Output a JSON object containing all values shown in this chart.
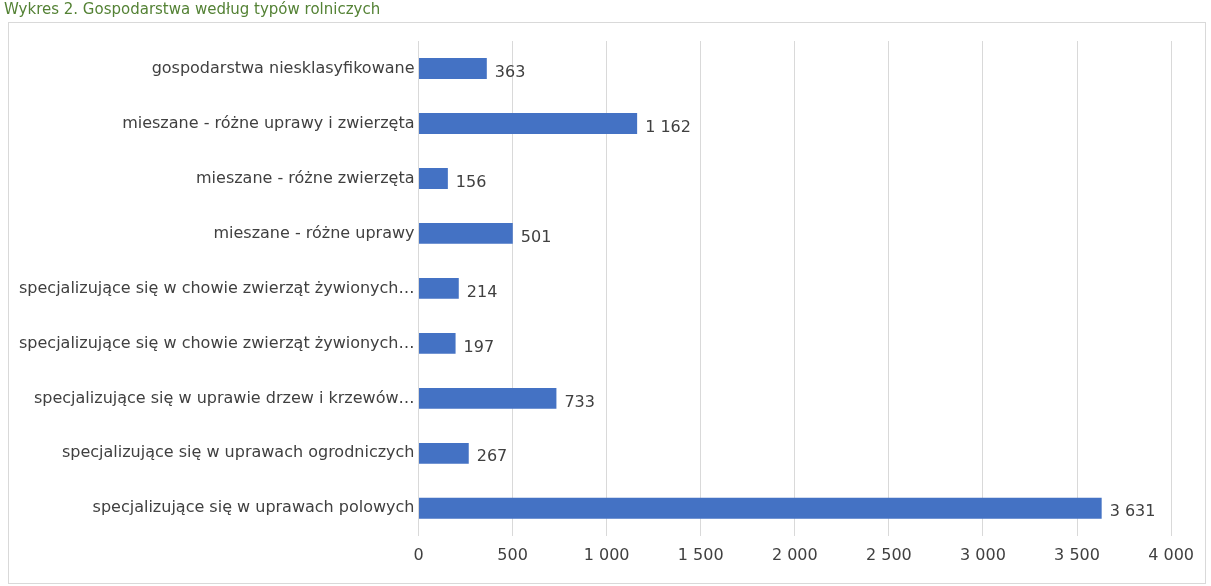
{
  "chart_data": {
    "type": "bar",
    "orientation": "horizontal",
    "title": "Wykres 2. Gospodarstwa według typów rolniczych",
    "categories": [
      "gospodarstwa niesklasyfikowane",
      "mieszane - różne uprawy i zwierzęta",
      "mieszane - różne zwierzęta",
      "mieszane - różne uprawy",
      "specjalizujące się w chowie zwierząt żywionych…",
      "specjalizujące się w chowie zwierząt żywionych…",
      "specjalizujące się w uprawie drzew i krzewów…",
      "specjalizujące się w uprawach ogrodniczych",
      "specjalizujące się w uprawach polowych"
    ],
    "values": [
      363,
      1162,
      156,
      501,
      214,
      197,
      733,
      267,
      3631
    ],
    "value_labels": [
      "363",
      "1 162",
      "156",
      "501",
      "214",
      "197",
      "733",
      "267",
      "3 631"
    ],
    "color": "#4472c4",
    "xlim": [
      0,
      4000
    ],
    "xticks": [
      0,
      {
        "value": 500,
        "label": "500"
      },
      {
        "value": 1000,
        "label": "1 000"
      },
      {
        "value": 1500,
        "label": "1 500"
      },
      {
        "value": 2000,
        "label": "2 000"
      },
      {
        "value": 2500,
        "label": "2 500"
      },
      {
        "value": 3000,
        "label": "3 000"
      },
      {
        "value": 3500,
        "label": "3 500"
      },
      {
        "value": 4000,
        "label": "4 000"
      }
    ],
    "grid": "x",
    "legend": false
  }
}
